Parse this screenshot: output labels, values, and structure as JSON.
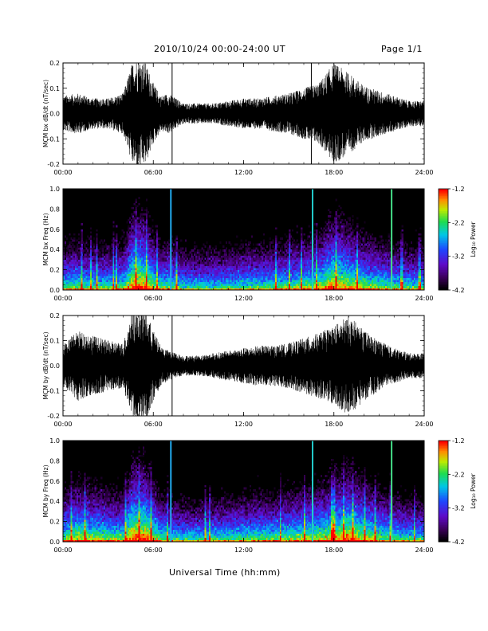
{
  "header": {
    "title": "2010/10/24  00:00-24:00 UT",
    "page": "Page 1/1"
  },
  "xaxis_label": "Universal Time (hh:mm)",
  "chart_data": [
    {
      "type": "line",
      "ylabel": "MCM bx dB/dt (nT/sec)",
      "xlim": [
        "00:00",
        "24:00"
      ],
      "ylim": [
        -0.2,
        0.2
      ],
      "x_ticks": [
        "00:00",
        "06:00",
        "12:00",
        "18:00",
        "24:00"
      ],
      "y_ticks": [
        "-0.2",
        "-0.1",
        "0.0",
        "0.1",
        "0.2"
      ],
      "envelope_hours": [
        0,
        1,
        2,
        3,
        4,
        4.6,
        5,
        5.5,
        6,
        6.5,
        7,
        8,
        9,
        10,
        11,
        12,
        13,
        14,
        15,
        16,
        17,
        18,
        19,
        20,
        21,
        22,
        23,
        24
      ],
      "envelope_amplitude": [
        0.07,
        0.08,
        0.06,
        0.06,
        0.08,
        0.2,
        0.22,
        0.2,
        0.12,
        0.07,
        0.08,
        0.04,
        0.04,
        0.04,
        0.05,
        0.06,
        0.06,
        0.07,
        0.08,
        0.1,
        0.12,
        0.2,
        0.16,
        0.11,
        0.09,
        0.07,
        0.05,
        0.05
      ],
      "spikes": [
        {
          "time": "07:15",
          "amplitude": 0.22
        },
        {
          "time": "16:30",
          "amplitude": 0.22
        }
      ]
    },
    {
      "type": "heatmap",
      "ylabel": "MCM bx Freq (Hz)",
      "xlim": [
        "00:00",
        "24:00"
      ],
      "ylim": [
        0.0,
        1.0
      ],
      "x_ticks": [
        "00:00",
        "06:00",
        "12:00",
        "18:00",
        "24:00"
      ],
      "y_ticks": [
        "0.0",
        "0.2",
        "0.4",
        "0.6",
        "0.8",
        "1.0"
      ],
      "colorbar": {
        "label": "Log₁₀ Power",
        "ticks": [
          "-1.2",
          "-2.2",
          "-3.2",
          "-4.2"
        ],
        "range": [
          -4.2,
          -1.2
        ]
      },
      "vertical_lines": [
        {
          "time": "07:10",
          "color": "#22aaee"
        },
        {
          "time": "16:35",
          "color": "#22c9c9"
        },
        {
          "time": "21:50",
          "color": "#44dd88"
        }
      ]
    },
    {
      "type": "line",
      "ylabel": "MCM by dB/dt (nT/sec)",
      "xlim": [
        "00:00",
        "24:00"
      ],
      "ylim": [
        -0.2,
        0.2
      ],
      "x_ticks": [
        "00:00",
        "06:00",
        "12:00",
        "18:00",
        "24:00"
      ],
      "y_ticks": [
        "-0.2",
        "-0.1",
        "0.0",
        "0.1",
        "0.2"
      ],
      "envelope_hours": [
        0,
        1,
        2,
        3,
        4,
        4.6,
        5,
        5.5,
        6,
        6.5,
        7,
        8,
        9,
        10,
        11,
        12,
        13,
        14,
        15,
        16,
        17,
        18,
        19,
        20,
        21,
        22,
        23,
        24
      ],
      "envelope_amplitude": [
        0.09,
        0.14,
        0.12,
        0.1,
        0.09,
        0.22,
        0.22,
        0.22,
        0.14,
        0.08,
        0.06,
        0.04,
        0.04,
        0.05,
        0.06,
        0.07,
        0.08,
        0.08,
        0.09,
        0.11,
        0.13,
        0.16,
        0.2,
        0.14,
        0.1,
        0.07,
        0.05,
        0.05
      ],
      "spikes": [
        {
          "time": "07:15",
          "amplitude": 0.22
        }
      ]
    },
    {
      "type": "heatmap",
      "ylabel": "MCM by Freq (Hz)",
      "xlim": [
        "00:00",
        "24:00"
      ],
      "ylim": [
        0.0,
        1.0
      ],
      "x_ticks": [
        "00:00",
        "06:00",
        "12:00",
        "18:00",
        "24:00"
      ],
      "y_ticks": [
        "0.0",
        "0.2",
        "0.4",
        "0.6",
        "0.8",
        "1.0"
      ],
      "colorbar": {
        "label": "Log₁₀ Power",
        "ticks": [
          "-1.2",
          "-2.2",
          "-3.2",
          "-4.2"
        ],
        "range": [
          -4.2,
          -1.2
        ]
      },
      "vertical_lines": [
        {
          "time": "07:10",
          "color": "#22aaee"
        },
        {
          "time": "16:35",
          "color": "#22c9c9"
        },
        {
          "time": "21:50",
          "color": "#44dd88"
        }
      ]
    }
  ]
}
